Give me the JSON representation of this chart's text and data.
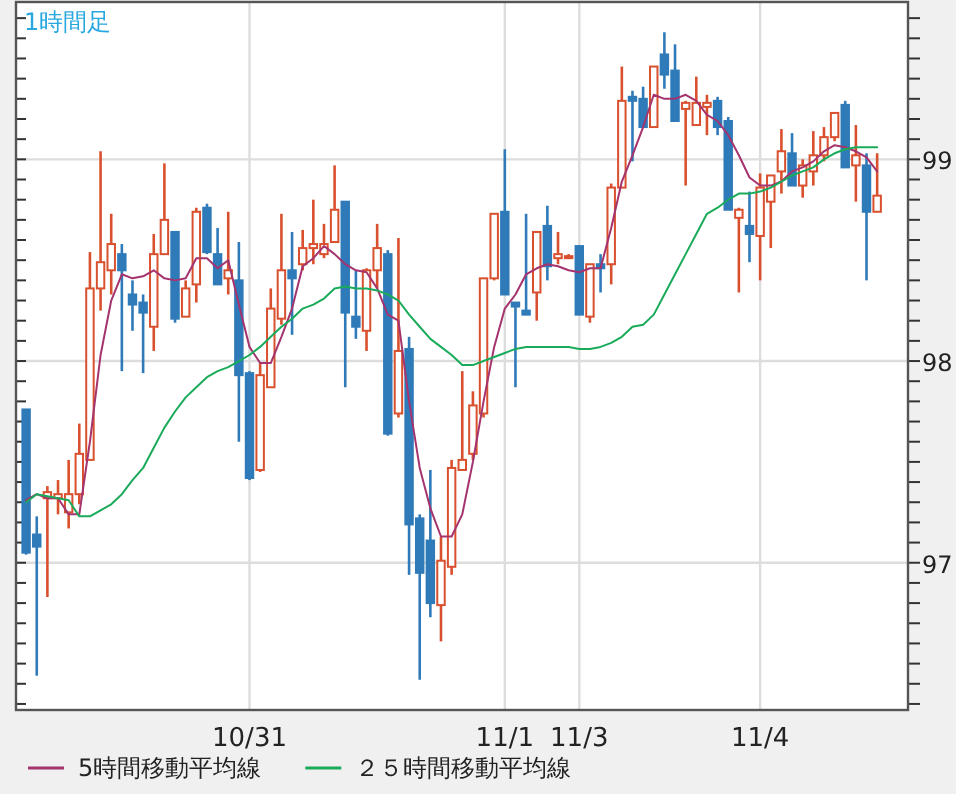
{
  "chart_data": {
    "type": "candlestick",
    "title": "1時間足",
    "categories": [
      null,
      null,
      null,
      null,
      null,
      null,
      null,
      null,
      null,
      null,
      null,
      null,
      null,
      null,
      null,
      null,
      null,
      null,
      null,
      null,
      null,
      "10/31",
      null,
      null,
      null,
      null,
      null,
      null,
      null,
      null,
      null,
      null,
      null,
      null,
      null,
      null,
      null,
      null,
      null,
      null,
      null,
      null,
      null,
      null,
      null,
      "11/1",
      null,
      null,
      null,
      null,
      null,
      null,
      "11/3",
      null,
      null,
      null,
      null,
      null,
      null,
      null,
      null,
      null,
      null,
      null,
      null,
      null,
      null,
      null,
      null,
      "11/4",
      null,
      null,
      null,
      null,
      null,
      null,
      null,
      null,
      null,
      null,
      null
    ],
    "ohlc": [
      [
        97.76,
        97.76,
        97.04,
        97.05
      ],
      [
        97.14,
        97.23,
        96.44,
        97.08
      ],
      [
        97.32,
        97.38,
        96.83,
        97.35
      ],
      [
        97.32,
        97.41,
        97.24,
        97.34
      ],
      [
        97.25,
        97.51,
        97.17,
        97.34
      ],
      [
        97.34,
        97.69,
        97.29,
        97.54
      ],
      [
        97.51,
        98.54,
        97.51,
        98.36
      ],
      [
        98.36,
        99.04,
        98.25,
        98.49
      ],
      [
        98.45,
        98.73,
        98.33,
        98.58
      ],
      [
        98.53,
        98.58,
        97.95,
        98.45
      ],
      [
        98.33,
        98.4,
        98.15,
        98.28
      ],
      [
        98.29,
        98.33,
        97.94,
        98.24
      ],
      [
        98.17,
        98.63,
        98.05,
        98.53
      ],
      [
        98.53,
        98.98,
        98.53,
        98.7
      ],
      [
        98.64,
        98.64,
        98.19,
        98.21
      ],
      [
        98.22,
        98.4,
        98.22,
        98.36
      ],
      [
        98.38,
        98.76,
        98.29,
        98.74
      ],
      [
        98.76,
        98.78,
        98.53,
        98.54
      ],
      [
        98.53,
        98.66,
        98.38,
        98.38
      ],
      [
        98.41,
        98.74,
        98.33,
        98.45
      ],
      [
        98.4,
        98.59,
        97.6,
        97.93
      ],
      [
        97.94,
        97.95,
        97.41,
        97.42
      ],
      [
        97.46,
        97.99,
        97.45,
        97.93
      ],
      [
        97.87,
        98.36,
        97.87,
        98.26
      ],
      [
        98.21,
        98.73,
        98.18,
        98.45
      ],
      [
        98.45,
        98.64,
        98.13,
        98.41
      ],
      [
        98.48,
        98.65,
        98.45,
        98.56
      ],
      [
        98.56,
        98.8,
        98.48,
        98.58
      ],
      [
        98.53,
        98.68,
        98.51,
        98.58
      ],
      [
        98.59,
        98.97,
        98.59,
        98.75
      ],
      [
        98.79,
        98.79,
        97.87,
        98.24
      ],
      [
        98.22,
        98.45,
        98.11,
        98.17
      ],
      [
        98.15,
        98.46,
        98.05,
        98.45
      ],
      [
        98.45,
        98.68,
        98.36,
        98.56
      ],
      [
        98.53,
        98.55,
        97.63,
        97.64
      ],
      [
        97.74,
        98.61,
        97.72,
        98.05
      ],
      [
        98.06,
        98.12,
        96.94,
        97.19
      ],
      [
        97.22,
        97.24,
        96.42,
        96.95
      ],
      [
        97.11,
        97.46,
        96.73,
        96.8
      ],
      [
        96.79,
        97.13,
        96.61,
        97.01
      ],
      [
        96.98,
        97.51,
        96.94,
        97.47
      ],
      [
        97.46,
        97.95,
        97.46,
        97.51
      ],
      [
        97.54,
        97.85,
        97.51,
        97.78
      ],
      [
        97.74,
        98.41,
        97.72,
        98.41
      ],
      [
        98.41,
        98.73,
        98.4,
        98.73
      ],
      [
        98.74,
        99.05,
        98.33,
        98.33
      ],
      [
        98.29,
        98.29,
        97.87,
        98.27
      ],
      [
        98.25,
        98.73,
        98.23,
        98.23
      ],
      [
        98.34,
        98.64,
        98.2,
        98.64
      ],
      [
        98.67,
        98.77,
        98.4,
        98.47
      ],
      [
        98.51,
        98.64,
        98.48,
        98.53
      ],
      [
        98.52,
        98.53,
        98.51,
        98.52
      ],
      [
        98.57,
        98.57,
        98.23,
        98.23
      ],
      [
        98.22,
        98.48,
        98.19,
        98.48
      ],
      [
        98.48,
        98.53,
        98.34,
        98.46
      ],
      [
        98.48,
        98.88,
        98.38,
        98.86
      ],
      [
        98.86,
        99.46,
        98.86,
        99.29
      ],
      [
        99.31,
        99.34,
        98.99,
        99.29
      ],
      [
        99.3,
        99.36,
        99.16,
        99.16
      ],
      [
        99.16,
        99.46,
        99.16,
        99.46
      ],
      [
        99.52,
        99.63,
        99.35,
        99.42
      ],
      [
        99.44,
        99.57,
        99.19,
        99.19
      ],
      [
        99.25,
        99.29,
        98.87,
        99.28
      ],
      [
        99.17,
        99.41,
        99.17,
        99.28
      ],
      [
        99.26,
        99.32,
        99.12,
        99.28
      ],
      [
        99.29,
        99.31,
        99.12,
        99.16
      ],
      [
        99.19,
        99.21,
        98.75,
        98.75
      ],
      [
        98.71,
        98.76,
        98.34,
        98.75
      ],
      [
        98.67,
        98.84,
        98.49,
        98.63
      ],
      [
        98.62,
        98.93,
        98.4,
        98.86
      ],
      [
        98.79,
        98.92,
        98.56,
        98.92
      ],
      [
        98.94,
        99.15,
        98.83,
        99.04
      ],
      [
        99.03,
        99.13,
        98.87,
        98.87
      ],
      [
        98.87,
        99.0,
        98.81,
        98.97
      ],
      [
        98.94,
        99.14,
        98.87,
        99.02
      ],
      [
        99.02,
        99.16,
        98.99,
        99.11
      ],
      [
        99.11,
        99.23,
        99.09,
        99.23
      ],
      [
        99.27,
        99.29,
        98.96,
        98.96
      ],
      [
        98.97,
        99.17,
        98.79,
        99.02
      ],
      [
        98.97,
        99.03,
        98.4,
        98.74
      ],
      [
        98.74,
        99.03,
        98.74,
        98.82
      ]
    ],
    "colors": [
      "#2f7ab8",
      "#2f7ab8",
      "#d9502e",
      "#d9502e",
      "#d9502e",
      "#d9502e",
      "#d9502e",
      "#d9502e",
      "#d9502e",
      "#2f7ab8",
      "#2f7ab8",
      "#2f7ab8",
      "#d9502e",
      "#d9502e",
      "#2f7ab8",
      "#d9502e",
      "#d9502e",
      "#2f7ab8",
      "#2f7ab8",
      "#d9502e",
      "#2f7ab8",
      "#2f7ab8",
      "#d9502e",
      "#d9502e",
      "#d9502e",
      "#2f7ab8",
      "#d9502e",
      "#d9502e",
      "#d9502e",
      "#d9502e",
      "#2f7ab8",
      "#2f7ab8",
      "#d9502e",
      "#d9502e",
      "#2f7ab8",
      "#d9502e",
      "#2f7ab8",
      "#2f7ab8",
      "#2f7ab8",
      "#d9502e",
      "#d9502e",
      "#d9502e",
      "#d9502e",
      "#d9502e",
      "#d9502e",
      "#2f7ab8",
      "#2f7ab8",
      "#2f7ab8",
      "#d9502e",
      "#2f7ab8",
      "#d9502e",
      "#d9502e",
      "#2f7ab8",
      "#d9502e",
      "#2f7ab8",
      "#d9502e",
      "#d9502e",
      "#2f7ab8",
      "#2f7ab8",
      "#d9502e",
      "#2f7ab8",
      "#2f7ab8",
      "#d9502e",
      "#d9502e",
      "#d9502e",
      "#2f7ab8",
      "#2f7ab8",
      "#d9502e",
      "#2f7ab8",
      "#d9502e",
      "#d9502e",
      "#d9502e",
      "#2f7ab8",
      "#d9502e",
      "#d9502e",
      "#d9502e",
      "#d9502e",
      "#2f7ab8",
      "#d9502e",
      "#2f7ab8",
      "#d9502e"
    ],
    "series": [
      {
        "type": "line",
        "name": "5時間移動平均線",
        "color": "#a4336e",
        "values": [
          97.31,
          97.34,
          97.32,
          97.32,
          97.24,
          97.24,
          97.6,
          98.03,
          98.3,
          98.43,
          98.41,
          98.42,
          98.45,
          98.41,
          98.4,
          98.41,
          98.51,
          98.51,
          98.46,
          98.5,
          98.28,
          98.07,
          97.99,
          97.99,
          98.12,
          98.26,
          98.47,
          98.51,
          98.57,
          98.53,
          98.48,
          98.45,
          98.44,
          98.36,
          98.23,
          98.2,
          97.8,
          97.47,
          97.27,
          97.13,
          97.13,
          97.24,
          97.5,
          97.8,
          98.07,
          98.26,
          98.33,
          98.43,
          98.46,
          98.48,
          98.47,
          98.45,
          98.44,
          98.46,
          98.46,
          98.66,
          98.89,
          99.02,
          99.16,
          99.32,
          99.3,
          99.3,
          99.32,
          99.29,
          99.22,
          99.19,
          99.12,
          99.02,
          98.91,
          98.87,
          98.87,
          98.89,
          98.94,
          98.96,
          98.99,
          99.04,
          99.07,
          99.06,
          99.04,
          99.01,
          98.94
        ]
      },
      {
        "type": "line",
        "name": "２５時間移動平均線",
        "color": "#1aab5a",
        "values": [
          97.3,
          97.34,
          97.33,
          97.32,
          97.31,
          97.23,
          97.23,
          97.26,
          97.29,
          97.34,
          97.41,
          97.47,
          97.57,
          97.67,
          97.75,
          97.82,
          97.87,
          97.92,
          97.95,
          97.97,
          98.0,
          98.03,
          98.07,
          98.12,
          98.17,
          98.21,
          98.26,
          98.28,
          98.31,
          98.36,
          98.37,
          98.36,
          98.36,
          98.35,
          98.33,
          98.3,
          98.23,
          98.17,
          98.11,
          98.07,
          98.03,
          97.98,
          97.98,
          98.0,
          98.02,
          98.04,
          98.06,
          98.07,
          98.07,
          98.07,
          98.07,
          98.07,
          98.06,
          98.06,
          98.07,
          98.09,
          98.12,
          98.17,
          98.18,
          98.23,
          98.33,
          98.43,
          98.53,
          98.63,
          98.73,
          98.76,
          98.8,
          98.83,
          98.83,
          98.84,
          98.86,
          98.89,
          98.92,
          98.94,
          98.96,
          99.0,
          99.03,
          99.05,
          99.06,
          99.06,
          99.06
        ]
      }
    ],
    "ylim": [
      96.27,
      99.78
    ],
    "yticks": [
      {
        "value": 96.3,
        "label": null
      },
      {
        "value": 96.4,
        "label": null
      },
      {
        "value": 96.5,
        "label": null
      },
      {
        "value": 96.6,
        "label": null
      },
      {
        "value": 96.7,
        "label": null
      },
      {
        "value": 96.8,
        "label": null
      },
      {
        "value": 96.9,
        "label": null
      },
      97,
      {
        "value": 97.1,
        "label": null
      },
      {
        "value": 97.2,
        "label": null
      },
      {
        "value": 97.3,
        "label": null
      },
      {
        "value": 97.4,
        "label": null
      },
      {
        "value": 97.5,
        "label": null
      },
      {
        "value": 97.6,
        "label": null
      },
      {
        "value": 97.7,
        "label": null
      },
      {
        "value": 97.8,
        "label": null
      },
      {
        "value": 97.9,
        "label": null
      },
      98,
      {
        "value": 98.1,
        "label": null
      },
      {
        "value": 98.2,
        "label": null
      },
      {
        "value": 98.3,
        "label": null
      },
      {
        "value": 98.4,
        "label": null
      },
      {
        "value": 98.5,
        "label": null
      },
      {
        "value": 98.6,
        "label": null
      },
      {
        "value": 98.7,
        "label": null
      },
      {
        "value": 98.8,
        "label": null
      },
      {
        "value": 98.9,
        "label": null
      },
      99,
      {
        "value": 99.1,
        "label": null
      },
      {
        "value": 99.2,
        "label": null
      },
      {
        "value": 99.3,
        "label": null
      },
      {
        "value": 99.4,
        "label": null
      },
      {
        "value": 99.5,
        "label": null
      },
      {
        "value": 99.6,
        "label": null
      },
      {
        "value": 99.7,
        "label": null
      }
    ],
    "grid": true,
    "legend": "bottom",
    "marker": "none",
    "line_style": "solid"
  }
}
